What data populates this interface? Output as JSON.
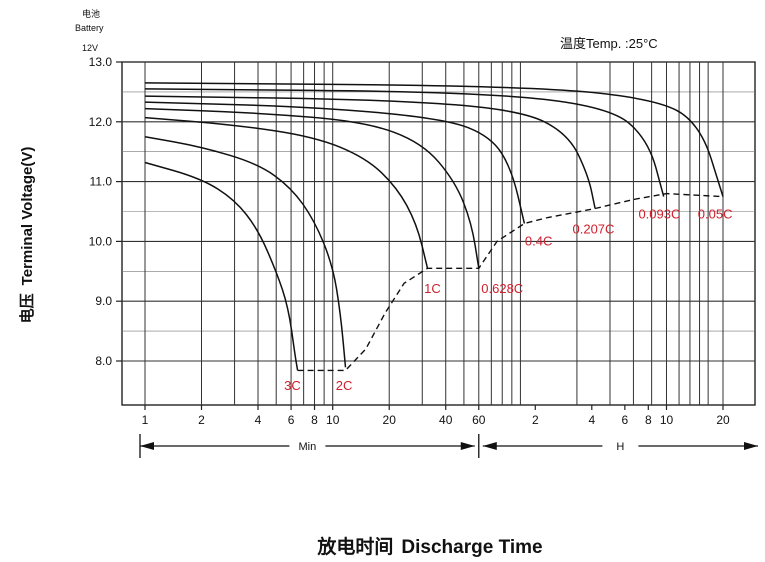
{
  "chart_data": {
    "type": "line",
    "battery_label_cn": "电池",
    "battery_label_en": "Battery",
    "battery_voltage": "12V",
    "temperature": "温度Temp. :25°C",
    "ylabel_cn": "电压",
    "ylabel": "Terminal Voltage(V)",
    "xlabel_cn": "放电时间",
    "xlabel": "Discharge Time",
    "ylim": [
      7.3,
      13.0
    ],
    "y_ticks": [
      "13.0",
      "12.0",
      "11.0",
      "10.0",
      "9.0",
      "8.0"
    ],
    "x_scale": "log",
    "x_unit": "minutes",
    "xlim_minutes": [
      1,
      1200
    ],
    "x_ticks_min": [
      {
        "label": "1",
        "minutes": 1
      },
      {
        "label": "2",
        "minutes": 2
      },
      {
        "label": "4",
        "minutes": 4
      },
      {
        "label": "6",
        "minutes": 6
      },
      {
        "label": "8",
        "minutes": 8
      },
      {
        "label": "10",
        "minutes": 10
      },
      {
        "label": "20",
        "minutes": 20
      },
      {
        "label": "40",
        "minutes": 40
      },
      {
        "label": "60",
        "minutes": 60
      }
    ],
    "x_ticks_hour": [
      {
        "label": "2",
        "minutes": 120
      },
      {
        "label": "4",
        "minutes": 240
      },
      {
        "label": "6",
        "minutes": 360
      },
      {
        "label": "8",
        "minutes": 480
      },
      {
        "label": "10",
        "minutes": 600
      },
      {
        "label": "20",
        "minutes": 1200
      }
    ],
    "x_segments": [
      {
        "label": "Min",
        "from": 1,
        "to": 60
      },
      {
        "label": "H",
        "from": 60,
        "to": 1200
      }
    ],
    "grid": true,
    "series": [
      {
        "name": "3C",
        "points": [
          [
            1,
            11.32
          ],
          [
            2,
            11.05
          ],
          [
            3,
            10.7
          ],
          [
            4,
            10.2
          ],
          [
            5,
            9.5
          ],
          [
            5.8,
            8.9
          ],
          [
            6.3,
            8.1
          ],
          [
            6.5,
            7.85
          ]
        ]
      },
      {
        "name": "2C",
        "points": [
          [
            1,
            11.75
          ],
          [
            2,
            11.58
          ],
          [
            4,
            11.3
          ],
          [
            6,
            10.9
          ],
          [
            8,
            10.35
          ],
          [
            10,
            9.6
          ],
          [
            11,
            8.8
          ],
          [
            11.7,
            7.9
          ]
        ]
      },
      {
        "name": "1C",
        "points": [
          [
            1,
            12.07
          ],
          [
            3,
            11.95
          ],
          [
            8,
            11.75
          ],
          [
            15,
            11.4
          ],
          [
            22,
            10.9
          ],
          [
            28,
            10.3
          ],
          [
            32,
            9.55
          ]
        ]
      },
      {
        "name": "0.628C",
        "points": [
          [
            1,
            12.22
          ],
          [
            4,
            12.15
          ],
          [
            15,
            12.0
          ],
          [
            30,
            11.65
          ],
          [
            45,
            11.0
          ],
          [
            55,
            10.3
          ],
          [
            60,
            9.55
          ]
        ]
      },
      {
        "name": "0.4C",
        "points": [
          [
            1,
            12.33
          ],
          [
            8,
            12.25
          ],
          [
            40,
            12.05
          ],
          [
            70,
            11.75
          ],
          [
            90,
            11.2
          ],
          [
            105,
            10.3
          ]
        ]
      },
      {
        "name": "0.207C",
        "points": [
          [
            1,
            12.43
          ],
          [
            20,
            12.37
          ],
          [
            100,
            12.2
          ],
          [
            180,
            11.8
          ],
          [
            230,
            11.1
          ],
          [
            250,
            10.55
          ]
        ]
      },
      {
        "name": "0.093C",
        "points": [
          [
            1,
            12.55
          ],
          [
            60,
            12.5
          ],
          [
            300,
            12.25
          ],
          [
            480,
            11.7
          ],
          [
            580,
            10.75
          ]
        ]
      },
      {
        "name": "0.05C",
        "points": [
          [
            1,
            12.65
          ],
          [
            100,
            12.6
          ],
          [
            500,
            12.4
          ],
          [
            900,
            12.0
          ],
          [
            1200,
            10.75
          ]
        ]
      }
    ],
    "end_voltage_curve": [
      [
        6.5,
        7.85
      ],
      [
        11.7,
        7.85
      ],
      [
        15,
        8.2
      ],
      [
        19,
        8.8
      ],
      [
        24,
        9.3
      ],
      [
        32,
        9.55
      ],
      [
        60,
        9.55
      ],
      [
        75,
        10.0
      ],
      [
        105,
        10.3
      ],
      [
        140,
        10.4
      ],
      [
        250,
        10.55
      ],
      [
        400,
        10.7
      ],
      [
        600,
        10.8
      ],
      [
        1200,
        10.75
      ]
    ],
    "labels": [
      {
        "text": "3C",
        "minutes": 6.1,
        "v": 7.6
      },
      {
        "text": "2C",
        "minutes": 11.5,
        "v": 7.6
      },
      {
        "text": "1C",
        "minutes": 34,
        "v": 9.2
      },
      {
        "text": "0.628C",
        "minutes": 80,
        "v": 9.2
      },
      {
        "text": "0.4C",
        "minutes": 125,
        "v": 10.0
      },
      {
        "text": "0.207C",
        "minutes": 245,
        "v": 10.2
      },
      {
        "text": "0.093C",
        "minutes": 550,
        "v": 10.45
      },
      {
        "text": "0.05C",
        "minutes": 1090,
        "v": 10.45
      }
    ]
  }
}
